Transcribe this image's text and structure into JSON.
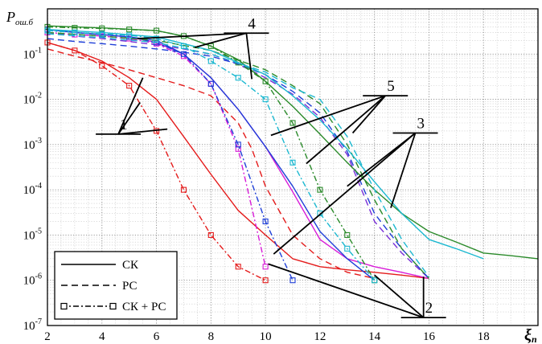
{
  "chart_data": {
    "type": "line",
    "y_label": "P",
    "y_label_sub": "ош.б",
    "x_label": "ξ",
    "x_label_sub": "п",
    "x_range": [
      2,
      20
    ],
    "y_range": [
      1e-07,
      1
    ],
    "y_scale": "log",
    "grid": "major and minor, dotted",
    "x_ticks": [
      "2",
      "4",
      "6",
      "8",
      "10",
      "12",
      "14",
      "16",
      "18"
    ],
    "y_ticks": [
      {
        "value": 0.1,
        "mant": "10",
        "exp": "-1"
      },
      {
        "value": 0.01,
        "mant": "10",
        "exp": "-2"
      },
      {
        "value": 0.001,
        "mant": "10",
        "exp": "-3"
      },
      {
        "value": 0.0001,
        "mant": "10",
        "exp": "-4"
      },
      {
        "value": 1e-05,
        "mant": "10",
        "exp": "-5"
      },
      {
        "value": 1e-06,
        "mant": "10",
        "exp": "-6"
      },
      {
        "value": 1e-07,
        "mant": "10",
        "exp": "-7"
      }
    ],
    "legend": {
      "placement": "bottom-left",
      "items": [
        {
          "label": "СК",
          "style": "solid",
          "marker": false
        },
        {
          "label": "РС",
          "style": "dashed",
          "marker": false
        },
        {
          "label": "СК + РС",
          "style": "dashdot",
          "marker": true
        }
      ]
    },
    "curve_group_labels": [
      {
        "text": "1",
        "color": "red",
        "anchor": [
          4.6,
          0.0017
        ],
        "targets": [
          [
            5.5,
            0.03
          ],
          [
            5.4,
            0.0085
          ],
          [
            6.4,
            0.0022
          ]
        ]
      },
      {
        "text": "2",
        "color": "magenta/purple",
        "anchor": [
          15.8,
          1.5e-07
        ],
        "targets": [
          [
            10.1,
            2.3e-06
          ],
          [
            14,
            1.3e-06
          ],
          [
            15.8,
            1.2e-06
          ]
        ]
      },
      {
        "text": "3",
        "color": "blue",
        "anchor": [
          15.5,
          0.0018
        ],
        "targets": [
          [
            13,
            0.00012
          ],
          [
            14.6,
            4e-05
          ],
          [
            10.3,
            3.8e-06
          ]
        ]
      },
      {
        "text": "4",
        "color": "dark green",
        "anchor": [
          9.3,
          0.29
        ],
        "targets": [
          [
            5.3,
            0.22
          ],
          [
            7.4,
            0.14
          ],
          [
            9.5,
            0.028
          ]
        ]
      },
      {
        "text": "5",
        "color": "cyan",
        "anchor": [
          14.4,
          0.012
        ],
        "targets": [
          [
            11.5,
            0.00038
          ],
          [
            13.2,
            0.0018
          ],
          [
            10.2,
            0.0016
          ]
        ]
      }
    ],
    "series": [
      {
        "type": "СК",
        "group": "1",
        "color": "#e41b1b",
        "style": "solid",
        "marker": false,
        "x": [
          2,
          3,
          4,
          5,
          6,
          7,
          8,
          9,
          10,
          11,
          12,
          13,
          14,
          15,
          16
        ],
        "y": [
          0.18,
          0.12,
          0.07,
          0.03,
          0.01,
          0.0015,
          0.00022,
          3.5e-05,
          1e-05,
          3e-06,
          2e-06,
          1.7e-06,
          1.5e-06,
          1.3e-06,
          1.1e-06
        ]
      },
      {
        "type": "РС",
        "group": "1",
        "color": "#e41b1b",
        "style": "dashed",
        "marker": false,
        "x": [
          2,
          3,
          4,
          5,
          6,
          7,
          8,
          9,
          9.5,
          10,
          11,
          12,
          13,
          14
        ],
        "y": [
          0.13,
          0.09,
          0.065,
          0.045,
          0.03,
          0.02,
          0.012,
          0.003,
          0.0008,
          0.00012,
          1e-05,
          3e-06,
          1.5e-06,
          1.1e-06
        ]
      },
      {
        "type": "СК + РС",
        "group": "1",
        "color": "#e41b1b",
        "style": "dashdot",
        "marker": true,
        "x": [
          2,
          3,
          4,
          5,
          6,
          7,
          8,
          9,
          10
        ],
        "y": [
          0.18,
          0.12,
          0.055,
          0.02,
          0.002,
          0.0001,
          1e-05,
          2e-06,
          1e-06
        ]
      },
      {
        "type": "СК",
        "group": "2",
        "color": "#d81bd8",
        "style": "solid",
        "marker": false,
        "x": [
          2,
          3,
          4,
          5,
          6,
          7,
          8,
          9,
          10,
          11,
          12,
          13,
          14,
          15,
          16
        ],
        "y": [
          0.35,
          0.3,
          0.27,
          0.24,
          0.18,
          0.1,
          0.03,
          0.006,
          0.0009,
          9e-05,
          8e-06,
          3e-06,
          2e-06,
          1.5e-06,
          1.1e-06
        ]
      },
      {
        "type": "РС",
        "group": "2",
        "color": "#7a2fd8",
        "style": "dashed",
        "marker": false,
        "x": [
          2,
          3,
          4,
          5,
          6,
          7,
          8,
          9,
          10,
          11,
          12,
          13,
          14,
          15,
          16
        ],
        "y": [
          0.3,
          0.25,
          0.22,
          0.19,
          0.16,
          0.13,
          0.1,
          0.06,
          0.03,
          0.013,
          0.004,
          0.0006,
          2e-05,
          4e-06,
          1.1e-06
        ]
      },
      {
        "type": "СК + РС",
        "group": "2",
        "color": "#d81bd8",
        "style": "dashdot",
        "marker": true,
        "x": [
          2,
          3,
          4,
          5,
          6,
          7,
          8,
          9,
          10
        ],
        "y": [
          0.3,
          0.27,
          0.25,
          0.22,
          0.17,
          0.09,
          0.022,
          0.0008,
          2e-06
        ]
      },
      {
        "type": "СК",
        "group": "3",
        "color": "#1f3fd8",
        "style": "solid",
        "marker": false,
        "x": [
          2,
          3,
          4,
          5,
          6,
          7,
          8,
          9,
          10,
          11,
          12,
          13,
          14
        ],
        "y": [
          0.35,
          0.3,
          0.27,
          0.24,
          0.2,
          0.1,
          0.03,
          0.006,
          0.0009,
          0.00012,
          1.2e-05,
          3e-06,
          1e-06
        ]
      },
      {
        "type": "РС",
        "group": "3",
        "color": "#1f3fd8",
        "style": "dashed",
        "marker": false,
        "x": [
          2,
          3,
          4,
          5,
          6,
          7,
          8,
          9,
          10,
          11,
          12,
          13,
          14,
          15,
          16
        ],
        "y": [
          0.22,
          0.19,
          0.17,
          0.15,
          0.13,
          0.11,
          0.09,
          0.06,
          0.035,
          0.015,
          0.005,
          0.0007,
          3e-05,
          5e-06,
          1.1e-06
        ]
      },
      {
        "type": "СК + РС",
        "group": "3",
        "color": "#1f3fd8",
        "style": "dashdot",
        "marker": true,
        "x": [
          2,
          3,
          4,
          5,
          6,
          7,
          8,
          9,
          10,
          11
        ],
        "y": [
          0.35,
          0.3,
          0.27,
          0.24,
          0.18,
          0.1,
          0.022,
          0.001,
          2e-05,
          1e-06
        ]
      },
      {
        "type": "СК",
        "group": "4",
        "color": "#2a8a2a",
        "style": "solid",
        "marker": false,
        "x": [
          2,
          4,
          6,
          7,
          8,
          9,
          10,
          11,
          12,
          13,
          14,
          15,
          16,
          17,
          18,
          19,
          20
        ],
        "y": [
          0.42,
          0.38,
          0.33,
          0.25,
          0.15,
          0.075,
          0.025,
          0.007,
          0.0017,
          0.0004,
          0.0001,
          3e-05,
          1.2e-05,
          7e-06,
          4e-06,
          3.5e-06,
          3e-06
        ]
      },
      {
        "type": "РС",
        "group": "4",
        "color": "#2a8a2a",
        "style": "dashed",
        "marker": false,
        "x": [
          2,
          4,
          6,
          8,
          10,
          11,
          12,
          13,
          14,
          15,
          16
        ],
        "y": [
          0.3,
          0.25,
          0.2,
          0.12,
          0.045,
          0.02,
          0.008,
          0.001,
          6e-05,
          5e-06,
          1.1e-06
        ]
      },
      {
        "type": "СК + РС",
        "group": "4",
        "color": "#2a8a2a",
        "style": "dashdot",
        "marker": true,
        "x": [
          2,
          3,
          4,
          5,
          6,
          7,
          8,
          9,
          10,
          11,
          12,
          13,
          14
        ],
        "y": [
          0.4,
          0.38,
          0.37,
          0.35,
          0.33,
          0.25,
          0.15,
          0.065,
          0.025,
          0.003,
          0.0001,
          1e-05,
          1e-06
        ]
      },
      {
        "type": "СК",
        "group": "5",
        "color": "#1bb8d0",
        "style": "solid",
        "marker": false,
        "x": [
          2,
          4,
          6,
          8,
          10,
          11,
          12,
          13,
          14,
          15,
          16,
          17,
          18
        ],
        "y": [
          0.35,
          0.3,
          0.24,
          0.12,
          0.035,
          0.012,
          0.0035,
          0.0008,
          0.00015,
          3e-05,
          8e-06,
          5e-06,
          3e-06
        ]
      },
      {
        "type": "РС",
        "group": "5",
        "color": "#1bb8d0",
        "style": "dashed",
        "marker": false,
        "x": [
          2,
          4,
          6,
          8,
          10,
          11,
          12,
          13,
          14,
          15,
          16
        ],
        "y": [
          0.28,
          0.23,
          0.18,
          0.1,
          0.04,
          0.018,
          0.01,
          0.0015,
          0.0001,
          8e-06,
          1.2e-06
        ]
      },
      {
        "type": "СК + РС",
        "group": "5",
        "color": "#1bb8d0",
        "style": "dashdot",
        "marker": true,
        "x": [
          2,
          3,
          4,
          5,
          6,
          7,
          8,
          9,
          10,
          11,
          12,
          13,
          14
        ],
        "y": [
          0.33,
          0.3,
          0.28,
          0.26,
          0.22,
          0.15,
          0.07,
          0.03,
          0.01,
          0.0004,
          3e-05,
          5e-06,
          1e-06
        ]
      }
    ]
  }
}
